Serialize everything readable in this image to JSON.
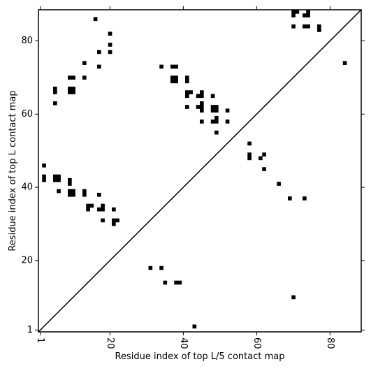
{
  "chart_data": {
    "type": "heatmap",
    "subtype": "contact-map",
    "xlabel": "Residue index of top L/5 contact map",
    "ylabel": "Residue index of top L contact map",
    "xlim": [
      0.5,
      88.5
    ],
    "ylim": [
      0.5,
      88.5
    ],
    "xticks": [
      1,
      20,
      40,
      60,
      80
    ],
    "yticks": [
      1,
      20,
      40,
      60,
      80
    ],
    "x_tick_labels": [
      "1",
      "20",
      "40",
      "60",
      "80"
    ],
    "y_tick_labels": [
      "1",
      "20",
      "40",
      "60",
      "80"
    ],
    "x_tick_rotation": -90,
    "diagonal": true,
    "grid": false,
    "marker_color": "#000000",
    "upper_left_triangle": {
      "axis": "top L contact map",
      "contacts": [
        [
          16,
          86
        ],
        [
          20,
          82
        ],
        [
          20,
          79
        ],
        [
          17,
          77
        ],
        [
          20,
          77
        ],
        [
          13,
          74
        ],
        [
          17,
          73
        ],
        [
          9,
          70
        ],
        [
          10,
          70
        ],
        [
          13,
          70
        ],
        [
          5,
          67
        ],
        [
          9,
          67
        ],
        [
          10,
          67
        ],
        [
          5,
          66
        ],
        [
          9,
          66
        ],
        [
          10,
          66
        ],
        [
          5,
          63
        ],
        [
          34,
          73
        ],
        [
          37,
          73
        ],
        [
          38,
          73
        ],
        [
          37,
          70
        ],
        [
          38,
          70
        ],
        [
          37,
          69
        ],
        [
          38,
          69
        ],
        [
          41,
          70
        ],
        [
          41,
          69
        ],
        [
          41,
          66
        ],
        [
          42,
          66
        ],
        [
          41,
          65
        ],
        [
          44,
          65
        ],
        [
          45,
          65
        ],
        [
          45,
          66
        ],
        [
          48,
          65
        ],
        [
          41,
          62
        ],
        [
          44,
          62
        ],
        [
          45,
          63
        ],
        [
          45,
          62
        ],
        [
          45,
          61
        ],
        [
          48,
          62
        ],
        [
          49,
          62
        ],
        [
          48,
          61
        ],
        [
          49,
          61
        ],
        [
          52,
          61
        ],
        [
          45,
          58
        ],
        [
          48,
          58
        ],
        [
          49,
          58
        ],
        [
          49,
          59
        ],
        [
          52,
          58
        ],
        [
          49,
          55
        ],
        [
          58,
          52
        ],
        [
          58,
          49
        ],
        [
          58,
          48
        ],
        [
          61,
          48
        ],
        [
          62,
          49
        ],
        [
          62,
          45
        ],
        [
          66,
          41
        ],
        [
          69,
          37
        ],
        [
          73,
          37
        ],
        [
          2,
          46
        ],
        [
          2,
          43
        ],
        [
          2,
          42
        ],
        [
          5,
          43
        ],
        [
          6,
          43
        ],
        [
          5,
          42
        ],
        [
          6,
          42
        ],
        [
          9,
          42
        ],
        [
          9,
          41
        ],
        [
          6,
          39
        ],
        [
          9,
          39
        ],
        [
          10,
          39
        ],
        [
          9,
          38
        ],
        [
          10,
          38
        ],
        [
          13,
          39
        ],
        [
          13,
          38
        ],
        [
          17,
          38
        ],
        [
          14,
          35
        ],
        [
          15,
          35
        ],
        [
          14,
          34
        ],
        [
          17,
          34
        ],
        [
          18,
          34
        ],
        [
          18,
          35
        ],
        [
          21,
          34
        ],
        [
          18,
          31
        ],
        [
          21,
          31
        ],
        [
          22,
          31
        ],
        [
          21,
          30
        ],
        [
          70,
          88
        ],
        [
          71,
          88
        ],
        [
          70,
          87
        ],
        [
          73,
          87
        ],
        [
          74,
          87
        ],
        [
          74,
          88
        ],
        [
          70,
          84
        ],
        [
          73,
          84
        ],
        [
          74,
          84
        ],
        [
          77,
          84
        ],
        [
          77,
          83
        ]
      ]
    },
    "lower_right_triangle": {
      "axis": "top L/5 contact map",
      "contacts": [
        [
          84,
          74
        ],
        [
          31,
          18
        ],
        [
          34,
          18
        ],
        [
          35,
          14
        ],
        [
          38,
          14
        ],
        [
          39,
          14
        ],
        [
          70,
          10
        ],
        [
          43,
          2
        ]
      ]
    }
  }
}
